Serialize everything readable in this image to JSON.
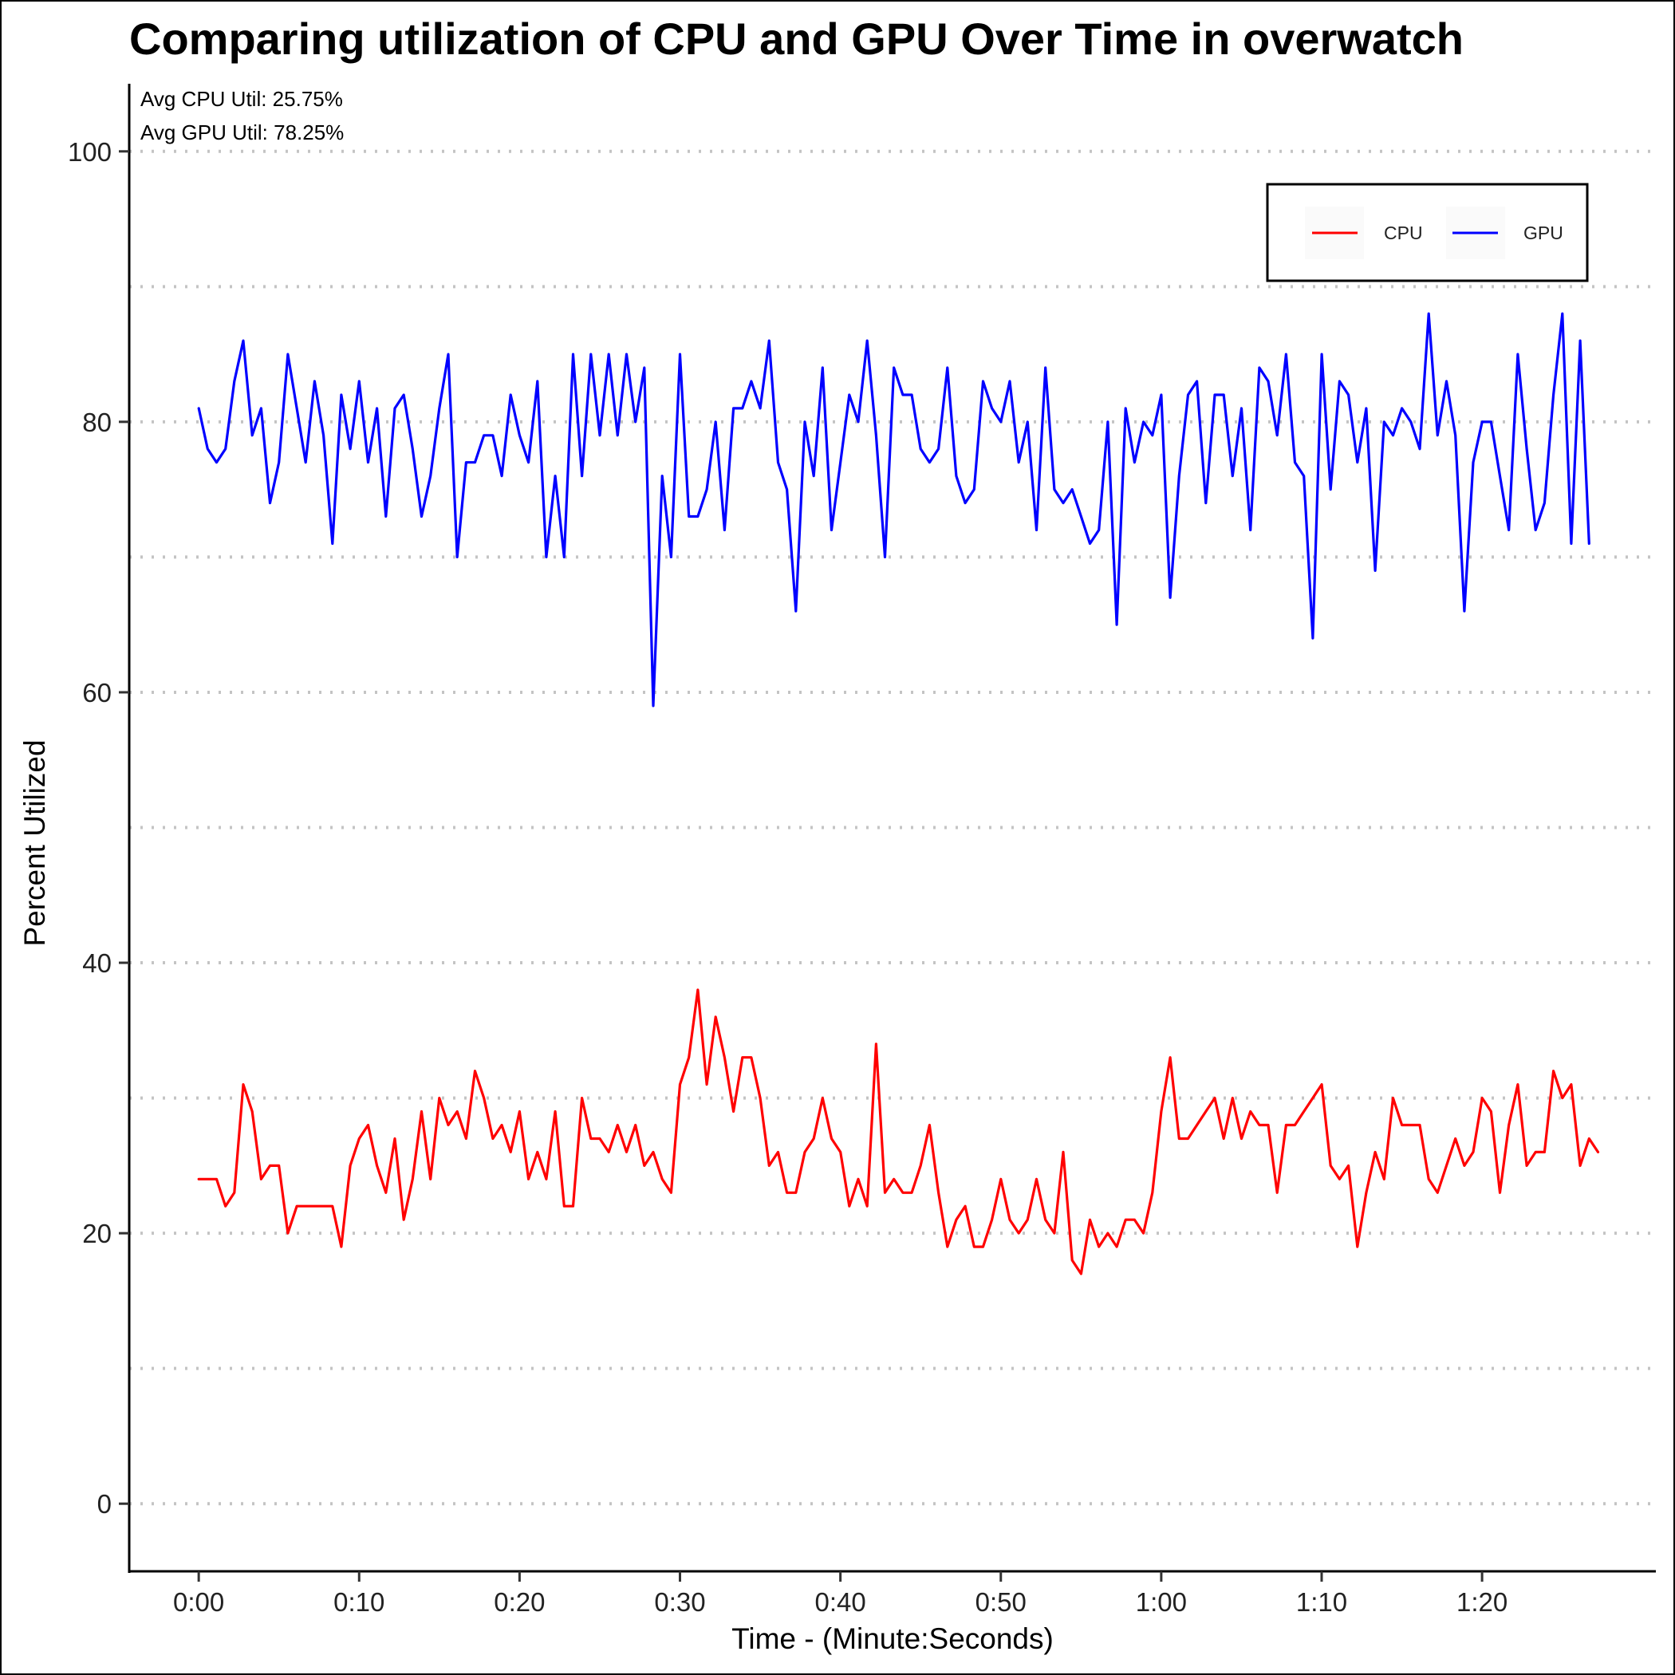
{
  "chart_data": {
    "type": "line",
    "title": "Comparing utilization of CPU and GPU Over Time in overwatch",
    "xlabel": "Time - (Minute:Seconds)",
    "ylabel": "Percent Utilized",
    "xlim": [
      -5.2,
      109
    ],
    "ylim": [
      -5,
      105
    ],
    "yticks": [
      0,
      20,
      40,
      60,
      80,
      100
    ],
    "ytick_labels": [
      "0",
      "20",
      "40",
      "60",
      "80",
      "100"
    ],
    "ygrid": [
      0,
      10,
      20,
      30,
      40,
      50,
      60,
      70,
      80,
      90,
      100
    ],
    "xticks": [
      0,
      12,
      24,
      36,
      48,
      60,
      72,
      84,
      96
    ],
    "xtick_labels": [
      "0:00",
      "0:10",
      "0:20",
      "0:30",
      "0:40",
      "0:50",
      "1:00",
      "1:10",
      "1:20"
    ],
    "x_step": 0.6667,
    "annotations": [
      "Avg CPU Util: 25.75%",
      "Avg GPU Util: 78.25%"
    ],
    "legend_position": "top-right",
    "series": [
      {
        "name": "CPU",
        "color": "#ff0000",
        "values": [
          24,
          24,
          24,
          22,
          23,
          31,
          29,
          24,
          25,
          25,
          20,
          22,
          22,
          22,
          22,
          22,
          19,
          25,
          27,
          28,
          25,
          23,
          27,
          21,
          24,
          29,
          24,
          30,
          28,
          29,
          27,
          32,
          30,
          27,
          28,
          26,
          29,
          24,
          26,
          24,
          29,
          22,
          22,
          30,
          27,
          27,
          26,
          28,
          26,
          28,
          25,
          26,
          24,
          23,
          31,
          33,
          38,
          31,
          36,
          33,
          29,
          33,
          33,
          30,
          25,
          26,
          23,
          23,
          26,
          27,
          30,
          27,
          26,
          22,
          24,
          22,
          34,
          23,
          24,
          23,
          23,
          25,
          28,
          23,
          19,
          21,
          22,
          19,
          19,
          21,
          24,
          21,
          20,
          21,
          24,
          21,
          20,
          26,
          18,
          17,
          21,
          19,
          20,
          19,
          21,
          21,
          20,
          23,
          29,
          33,
          27,
          27,
          28,
          29,
          30,
          27,
          30,
          27,
          29,
          28,
          28,
          23,
          28,
          28,
          29,
          30,
          31,
          25,
          24,
          25,
          19,
          23,
          26,
          24,
          30,
          28,
          28,
          28,
          24,
          23,
          25,
          27,
          25,
          26,
          30,
          29,
          23,
          28,
          31,
          25,
          26,
          26,
          32,
          30,
          31,
          25,
          27,
          26
        ]
      },
      {
        "name": "GPU",
        "color": "#0000ff",
        "values": [
          81,
          78,
          77,
          78,
          83,
          86,
          79,
          81,
          74,
          77,
          85,
          81,
          77,
          83,
          79,
          71,
          82,
          78,
          83,
          77,
          81,
          73,
          81,
          82,
          78,
          73,
          76,
          81,
          85,
          70,
          77,
          77,
          79,
          79,
          76,
          82,
          79,
          77,
          83,
          70,
          76,
          70,
          85,
          76,
          85,
          79,
          85,
          79,
          85,
          80,
          84,
          59,
          76,
          70,
          85,
          73,
          73,
          75,
          80,
          72,
          81,
          81,
          83,
          81,
          86,
          77,
          75,
          66,
          80,
          76,
          84,
          72,
          77,
          82,
          80,
          86,
          79,
          70,
          84,
          82,
          82,
          78,
          77,
          78,
          84,
          76,
          74,
          75,
          83,
          81,
          80,
          83,
          77,
          80,
          72,
          84,
          75,
          74,
          75,
          73,
          71,
          72,
          80,
          65,
          81,
          77,
          80,
          79,
          82,
          67,
          76,
          82,
          83,
          74,
          82,
          82,
          76,
          81,
          72,
          84,
          83,
          79,
          85,
          77,
          76,
          64,
          85,
          75,
          83,
          82,
          77,
          81,
          69,
          80,
          79,
          81,
          80,
          78,
          88,
          79,
          83,
          79,
          66,
          77,
          80,
          80,
          76,
          72,
          85,
          78,
          72,
          74,
          82,
          88,
          71,
          86,
          71
        ]
      }
    ]
  }
}
